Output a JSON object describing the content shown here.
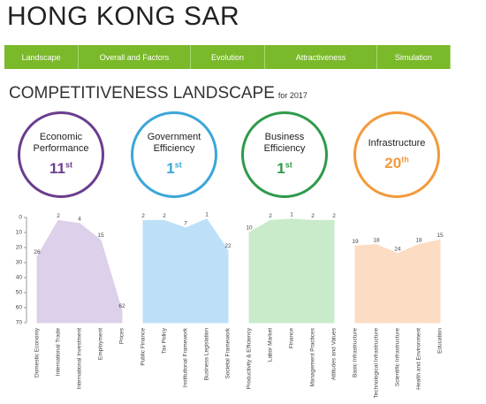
{
  "header": {
    "title": "HONG KONG SAR"
  },
  "nav": [
    "Landscape",
    "Overall and Factors",
    "Evolution",
    "Attractiveness",
    "Simulation"
  ],
  "section": {
    "title": "COMPETITIVENESS LANDSCAPE",
    "subtitle": "for 2017"
  },
  "circles": [
    {
      "label": "Economic Performance",
      "rank": "11",
      "suffix": "st",
      "color": "#6a3d8f"
    },
    {
      "label": "Government Efficiency",
      "rank": "1",
      "suffix": "st",
      "color": "#3ba6d9"
    },
    {
      "label": "Business Efficiency",
      "rank": "1",
      "suffix": "st",
      "color": "#2f9a4a"
    },
    {
      "label": "Infrastructure",
      "rank": "20",
      "suffix": "th",
      "color": "#f39a3a"
    }
  ],
  "chart_data": {
    "type": "area",
    "categories": [
      "Domestic Economy",
      "International Trade",
      "International Investment",
      "Employment",
      "Prices",
      "Public Finance",
      "Tax Policy",
      "Institutional Framework",
      "Business Legislation",
      "Societal Framework",
      "Productivity & Efficiency",
      "Labor Market",
      "Finance",
      "Management Practices",
      "Attitudes and Values",
      "Basic Infrastructure",
      "Technological Infrastructure",
      "Scientific Infrastructure",
      "Health and Environment",
      "Education"
    ],
    "series": [
      {
        "color": "#ddd0ea",
        "values": [
          26,
          2,
          4,
          15,
          62,
          null,
          null,
          null,
          null,
          null,
          null,
          null,
          null,
          null,
          null,
          null,
          null,
          null,
          null,
          null
        ]
      },
      {
        "color": "#bde0f8",
        "values": [
          null,
          null,
          null,
          null,
          null,
          2,
          2,
          7,
          1,
          22,
          null,
          null,
          null,
          null,
          null,
          null,
          null,
          null,
          null,
          null
        ]
      },
      {
        "color": "#c9ebca",
        "values": [
          null,
          null,
          null,
          null,
          null,
          null,
          null,
          null,
          null,
          null,
          10,
          2,
          1,
          2,
          2,
          null,
          null,
          null,
          null,
          null
        ]
      },
      {
        "color": "#fcdcc2",
        "values": [
          null,
          null,
          null,
          null,
          null,
          null,
          null,
          null,
          null,
          null,
          null,
          null,
          null,
          null,
          null,
          19,
          18,
          24,
          18,
          15
        ]
      }
    ],
    "ylim": [
      70,
      0
    ],
    "yticks": [
      0,
      10,
      20,
      30,
      40,
      50,
      60,
      70
    ]
  }
}
